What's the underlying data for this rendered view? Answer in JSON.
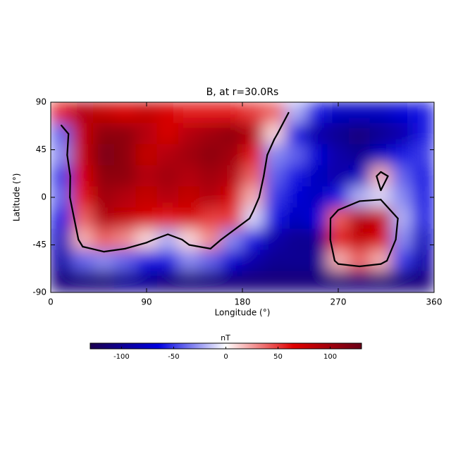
{
  "chart_data": {
    "type": "heatmap",
    "title": "B, at r=30.0Rs",
    "x_label": "Longitude (°)",
    "y_label": "Latitude (°)",
    "x": [
      10,
      30,
      50,
      70,
      90,
      110,
      130,
      150,
      170,
      190,
      210,
      230,
      250,
      270,
      290,
      310,
      330,
      350
    ],
    "y": [
      80,
      60,
      40,
      20,
      0,
      -20,
      -40,
      -60,
      -80
    ],
    "z": [
      [
        60,
        90,
        80,
        70,
        80,
        70,
        60,
        60,
        60,
        50,
        40,
        -20,
        -60,
        -80,
        -80,
        -80,
        -70,
        -60
      ],
      [
        -40,
        80,
        110,
        110,
        90,
        70,
        90,
        100,
        110,
        90,
        10,
        -60,
        -90,
        -100,
        -110,
        -100,
        -90,
        -60
      ],
      [
        -30,
        80,
        120,
        110,
        80,
        90,
        100,
        110,
        100,
        60,
        -30,
        -40,
        -70,
        -90,
        -100,
        -80,
        -60,
        -50
      ],
      [
        -50,
        70,
        110,
        110,
        90,
        100,
        90,
        100,
        90,
        40,
        -40,
        -60,
        -80,
        -90,
        -80,
        20,
        -40,
        -60
      ],
      [
        -40,
        60,
        100,
        90,
        80,
        90,
        80,
        90,
        70,
        20,
        -50,
        -70,
        -80,
        -60,
        -20,
        -10,
        -30,
        -60
      ],
      [
        -60,
        40,
        90,
        80,
        70,
        60,
        70,
        50,
        50,
        -10,
        -60,
        -80,
        -70,
        40,
        90,
        80,
        -20,
        -60
      ],
      [
        -80,
        20,
        40,
        30,
        10,
        -20,
        10,
        30,
        -30,
        -60,
        -90,
        -100,
        -100,
        60,
        80,
        70,
        -30,
        -80
      ],
      [
        -90,
        -40,
        -30,
        -40,
        -60,
        -60,
        -30,
        -40,
        -70,
        -90,
        -100,
        -100,
        -100,
        20,
        40,
        20,
        -50,
        -90
      ],
      [
        -110,
        -110,
        -110,
        -100,
        -100,
        -110,
        -110,
        -110,
        -110,
        -110,
        -110,
        -110,
        -110,
        -110,
        -110,
        -110,
        -110,
        -110
      ]
    ],
    "xlim": [
      0,
      360
    ],
    "ylim": [
      -90,
      90
    ],
    "xticks": [
      0,
      90,
      180,
      270,
      360
    ],
    "yticks": [
      90,
      45,
      0,
      -45,
      -90
    ],
    "contour_color": "#000000",
    "colorbar": {
      "label": "nT",
      "clim": [
        -130,
        130
      ],
      "ticks": [
        -100,
        -50,
        0,
        50,
        100
      ],
      "colors": [
        "#1c0050",
        "#0000e0",
        "#ffffff",
        "#e00000",
        "#6a0018"
      ]
    }
  }
}
